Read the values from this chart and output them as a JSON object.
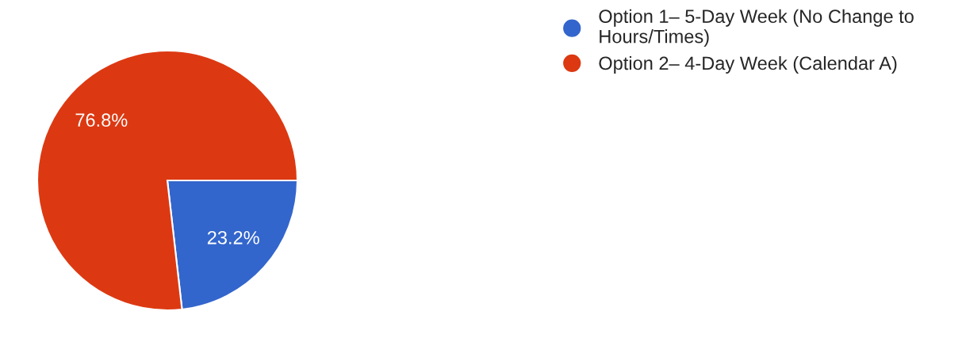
{
  "chart_data": {
    "type": "pie",
    "categories": [
      "Option 1– 5-Day Week (No Change to\nHours/Times)",
      "Option 2– 4-Day Week (Calendar A)"
    ],
    "values": [
      23.2,
      76.8
    ],
    "colors": [
      "#3366cc",
      "#dc3912"
    ],
    "value_labels": [
      "23.2%",
      "76.8%"
    ],
    "legend": "top right"
  }
}
